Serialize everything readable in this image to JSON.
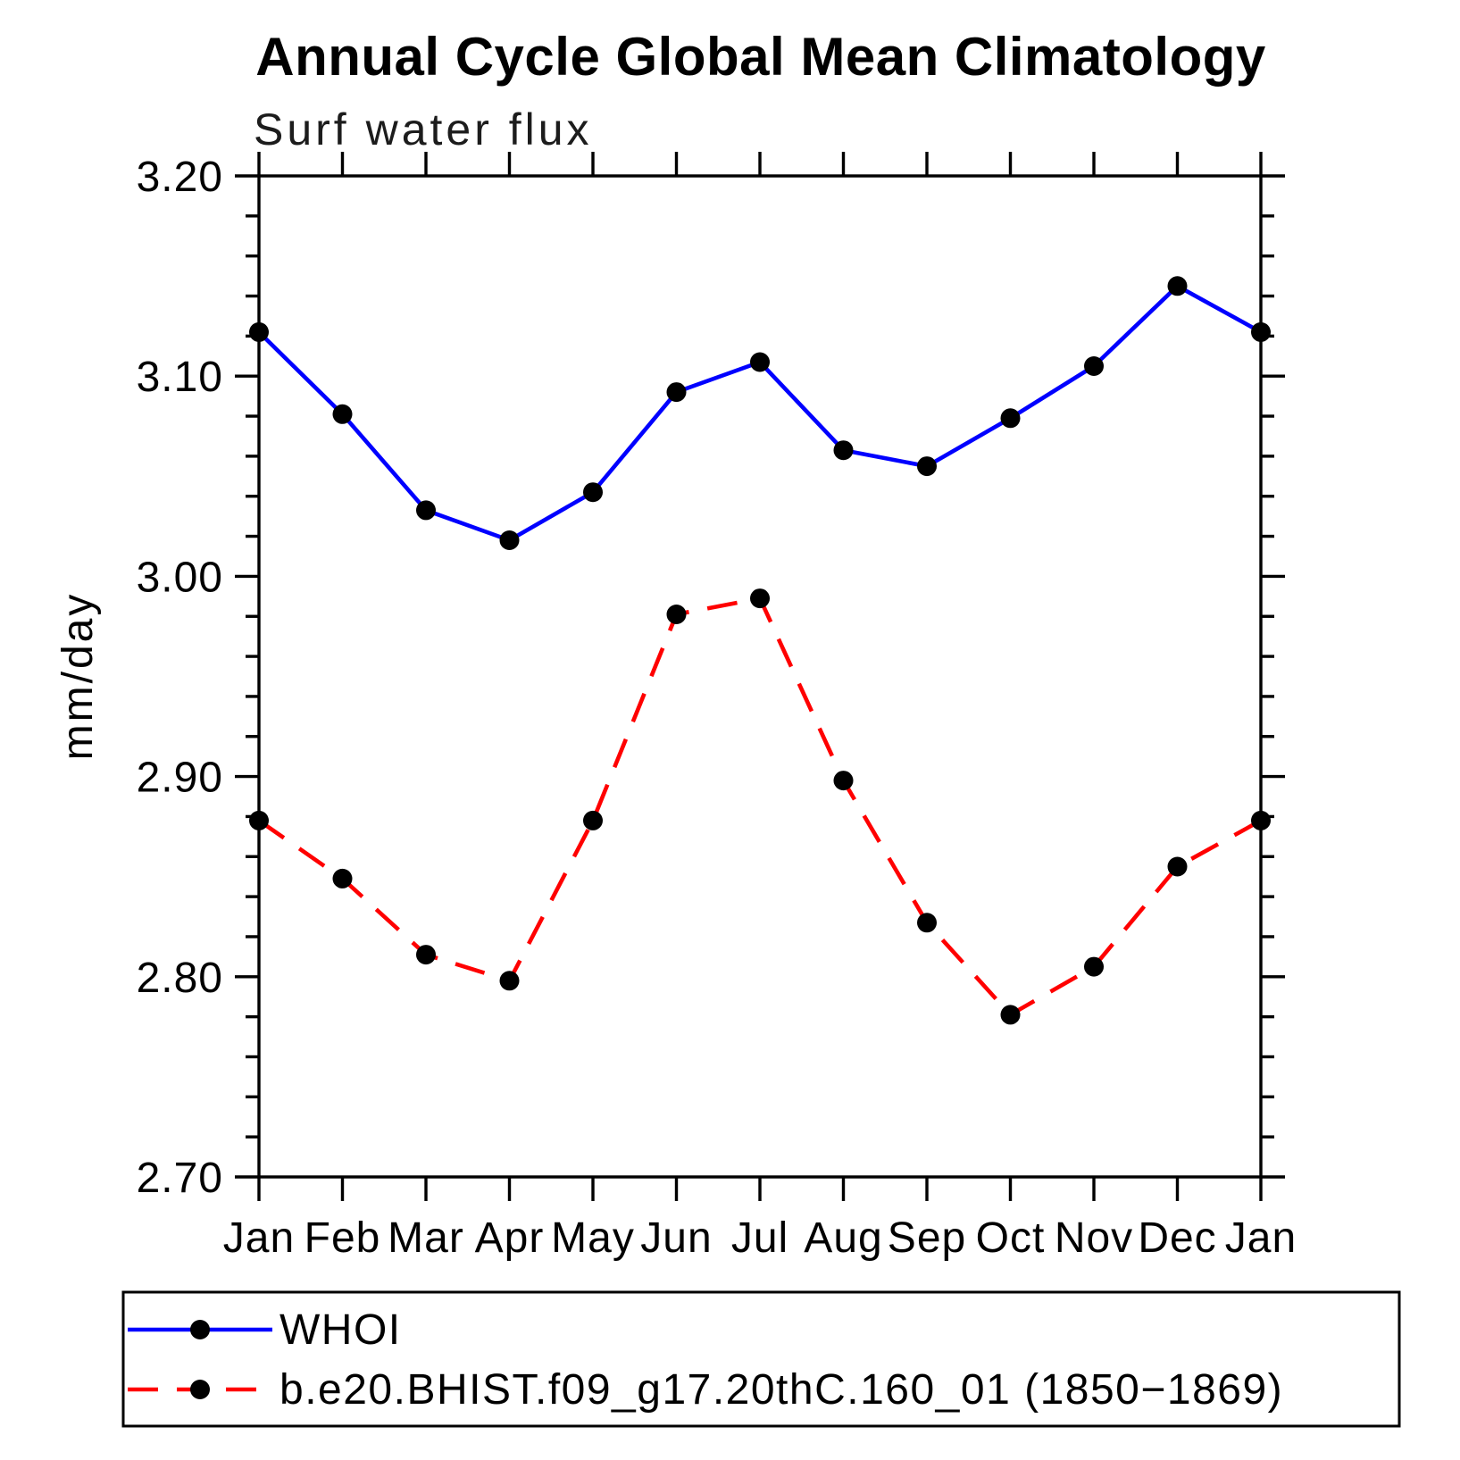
{
  "page": {
    "background": "#ffffff",
    "title": "Annual Cycle Global Mean Climatology",
    "subtitle": "Surf water flux"
  },
  "chart_data": {
    "type": "line",
    "title": "Annual Cycle Global Mean Climatology",
    "subtitle": "Surf water flux",
    "xlabel": "",
    "ylabel": "mm/day",
    "categories": [
      "Jan",
      "Feb",
      "Mar",
      "Apr",
      "May",
      "Jun",
      "Jul",
      "Aug",
      "Sep",
      "Oct",
      "Nov",
      "Dec",
      "Jan"
    ],
    "series": [
      {
        "name": "WHOI",
        "color": "#0000ff",
        "line_style": "solid",
        "marker": "filled-circle",
        "marker_color": "#000000",
        "values": [
          3.122,
          3.081,
          3.033,
          3.018,
          3.042,
          3.092,
          3.107,
          3.063,
          3.055,
          3.079,
          3.105,
          3.145,
          3.122
        ]
      },
      {
        "name": "b.e20.BHIST.f09_g17.20thC.160_01 (1850−1869)",
        "color": "#ff0000",
        "line_style": "dashed",
        "marker": "filled-circle",
        "marker_color": "#000000",
        "values": [
          2.878,
          2.849,
          2.811,
          2.798,
          2.878,
          2.981,
          2.989,
          2.898,
          2.827,
          2.781,
          2.805,
          2.855,
          2.878
        ]
      }
    ],
    "ylim": [
      2.7,
      3.2
    ],
    "ytick_major_step": 0.1,
    "ytick_minor_step": 0.02,
    "ytick_labels": [
      "2.70",
      "2.80",
      "2.90",
      "3.00",
      "3.10",
      "3.20"
    ],
    "grid": "off",
    "axis_box": "all-four-sides",
    "tick_direction": "outward",
    "legend_position": "bottom-left-box"
  },
  "legend": {
    "entries": [
      {
        "label": "WHOI"
      },
      {
        "label": "b.e20.BHIST.f09_g17.20thC.160_01 (1850−1869)"
      }
    ]
  }
}
